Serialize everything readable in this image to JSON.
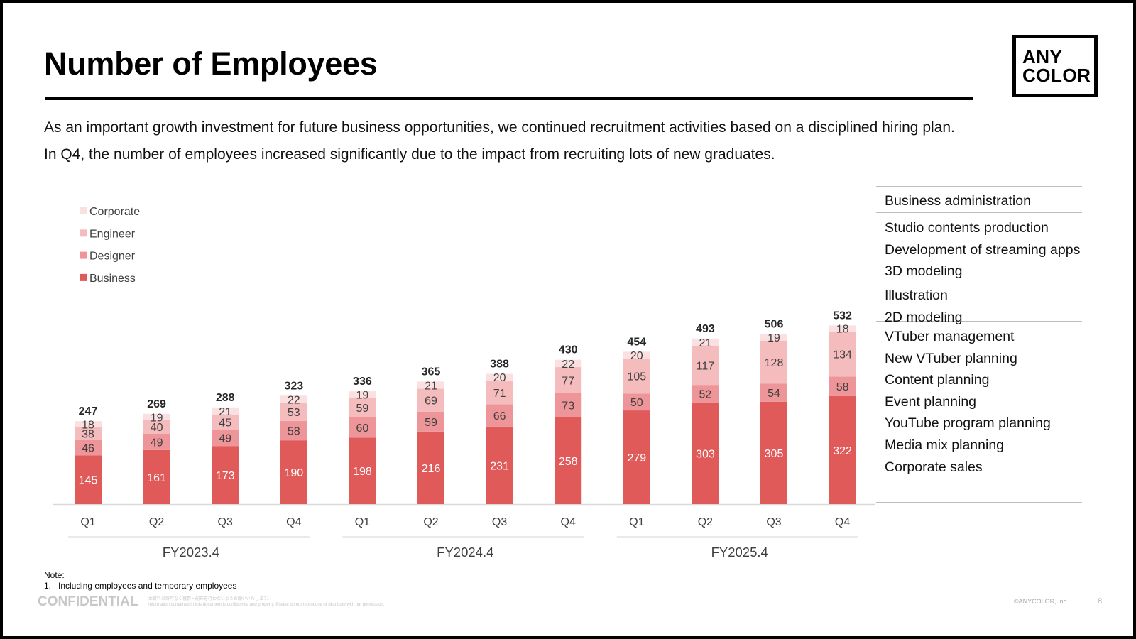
{
  "slide": {
    "title": "Number of Employees",
    "logo": {
      "line1": "ANY",
      "line2": "COLOR"
    },
    "intro": [
      "As an important growth investment for future business opportunities, we continued recruitment activities based on a disciplined hiring plan.",
      "In Q4, the number of employees increased significantly due to the impact from recruiting lots of new graduates."
    ]
  },
  "chart_data": {
    "type": "bar",
    "stacked": true,
    "categories": [
      "Q1",
      "Q2",
      "Q3",
      "Q4",
      "Q1",
      "Q2",
      "Q3",
      "Q4",
      "Q1",
      "Q2",
      "Q3",
      "Q4"
    ],
    "groups": [
      {
        "label": "FY2023.4",
        "span": 4
      },
      {
        "label": "FY2024.4",
        "span": 4
      },
      {
        "label": "FY2025.4",
        "span": 4
      }
    ],
    "series": [
      {
        "name": "Business",
        "color": "#e05a5a",
        "label_color": "#ffffff",
        "values": [
          145,
          161,
          173,
          190,
          198,
          216,
          231,
          258,
          279,
          303,
          305,
          322
        ]
      },
      {
        "name": "Designer",
        "color": "#ed9598",
        "label_color": "#3f3f3f",
        "values": [
          46,
          49,
          49,
          58,
          60,
          59,
          66,
          73,
          50,
          52,
          54,
          58
        ]
      },
      {
        "name": "Engineer",
        "color": "#f5bcbe",
        "label_color": "#3f3f3f",
        "values": [
          38,
          40,
          45,
          53,
          59,
          69,
          71,
          77,
          105,
          117,
          128,
          134
        ]
      },
      {
        "name": "Corporate",
        "color": "#fbe0e1",
        "label_color": "#3f3f3f",
        "values": [
          18,
          19,
          21,
          22,
          19,
          21,
          20,
          22,
          20,
          21,
          19,
          18
        ]
      }
    ],
    "totals": [
      247,
      269,
      288,
      323,
      336,
      365,
      388,
      430,
      454,
      493,
      506,
      532
    ],
    "legend": {
      "placement": "top-left",
      "order": [
        "Corporate",
        "Engineer",
        "Designer",
        "Business"
      ]
    },
    "grid": false
  },
  "departments": [
    {
      "items": [
        "Business administration"
      ]
    },
    {
      "items": [
        "Studio contents production",
        "Development of streaming apps",
        "3D modeling"
      ]
    },
    {
      "items": [
        "Illustration",
        "2D modeling"
      ]
    },
    {
      "items": [
        "VTuber management",
        "New VTuber planning",
        "Content planning",
        "Event planning",
        "YouTube program planning",
        "Media mix planning",
        "Corporate sales"
      ]
    }
  ],
  "footer": {
    "note_heading": "Note:",
    "note_item": "1.   Including employees and temporary employees",
    "confidential": "CONFIDENTIAL",
    "fine_print_1": "本資料は許可なく複製・配布を行わないようお願いいたします。",
    "fine_print_2": "Information contained in this document is confidential and property. Please do not reproduce or distribute with out permission.",
    "copyright": "©ANYCOLOR, Inc.",
    "page_number": "8"
  }
}
